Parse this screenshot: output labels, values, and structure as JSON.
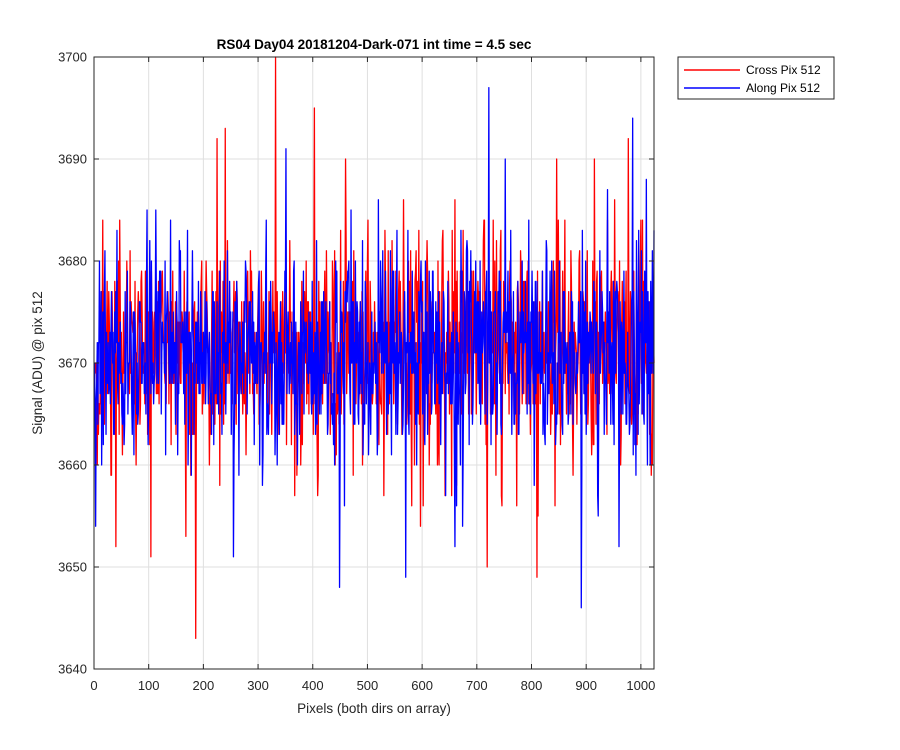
{
  "chart_data": {
    "type": "line",
    "title": "RS04 Day04 20181204-Dark-071 int time = 4.5 sec",
    "xlabel": "Pixels (both dirs on array)",
    "ylabel": "Signal (ADU) @ pix 512",
    "xlim": [
      0,
      1024
    ],
    "ylim": [
      3640,
      3700
    ],
    "xticks": [
      0,
      100,
      200,
      300,
      400,
      500,
      600,
      700,
      800,
      900,
      1000
    ],
    "yticks": [
      3640,
      3650,
      3660,
      3670,
      3680,
      3690,
      3700
    ],
    "grid": true,
    "legend_position": "outside-top-right",
    "x": {
      "start": 1,
      "end": 1024,
      "step": 1
    },
    "series": [
      {
        "name": "Cross Pix 512",
        "color": "#ff0000",
        "noise": {
          "mean": 3671,
          "std": 5.6,
          "seed": 71
        },
        "highlights": [
          {
            "x": 186,
            "y": 3643
          },
          {
            "x": 332,
            "y": 3700
          },
          {
            "x": 403,
            "y": 3695
          },
          {
            "x": 719,
            "y": 3650
          },
          {
            "x": 810,
            "y": 3649
          },
          {
            "x": 104,
            "y": 3651
          },
          {
            "x": 40,
            "y": 3652
          },
          {
            "x": 240,
            "y": 3693
          },
          {
            "x": 225,
            "y": 3692
          },
          {
            "x": 977,
            "y": 3692
          },
          {
            "x": 846,
            "y": 3690
          },
          {
            "x": 168,
            "y": 3653
          },
          {
            "x": 460,
            "y": 3690
          },
          {
            "x": 915,
            "y": 3690
          }
        ]
      },
      {
        "name": "Along Pix 512",
        "color": "#0000ff",
        "noise": {
          "mean": 3671,
          "std": 5.3,
          "seed": 512
        },
        "highlights": [
          {
            "x": 722,
            "y": 3697
          },
          {
            "x": 985,
            "y": 3694
          },
          {
            "x": 891,
            "y": 3646
          },
          {
            "x": 449,
            "y": 3648
          },
          {
            "x": 351,
            "y": 3691
          },
          {
            "x": 570,
            "y": 3649
          },
          {
            "x": 255,
            "y": 3651
          },
          {
            "x": 3,
            "y": 3654
          },
          {
            "x": 752,
            "y": 3690
          },
          {
            "x": 960,
            "y": 3652
          },
          {
            "x": 1010,
            "y": 3688
          },
          {
            "x": 660,
            "y": 3652
          },
          {
            "x": 520,
            "y": 3686
          }
        ]
      }
    ]
  }
}
